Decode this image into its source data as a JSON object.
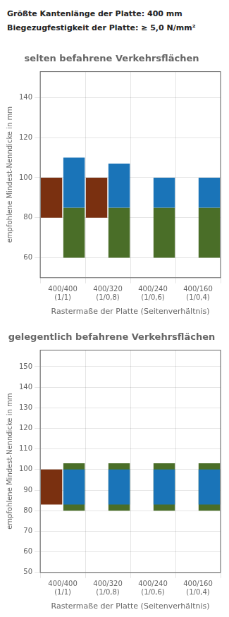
{
  "chart_data": [
    {
      "type": "bar",
      "title": "selten befahrene Verkehrsflächen",
      "annotations": [
        "Größte Kantenlänge der Platte: 400 mm",
        "Biegezugfestigkeit der Platte: ≥ 5,0 N/mm²"
      ],
      "x_label": "Rastermaße der Platte (Seitenverhältnis)",
      "y_label": "empfohlene Mindest-Nenndicke in mm",
      "categories": [
        "400/400\n(1/1)",
        "400/320\n(1/0,8)",
        "400/240\n(1/0,6)",
        "400/160\n(1/0,4)"
      ],
      "series": [
        {
          "color": "#4a6e28",
          "values": [
            [
              60,
              85
            ],
            [
              60,
              85
            ],
            [
              60,
              85
            ],
            [
              60,
              85
            ]
          ]
        },
        {
          "color": "#1a74b8",
          "values": [
            [
              85,
              110
            ],
            [
              85,
              107
            ],
            [
              85,
              100
            ],
            [
              85,
              100
            ]
          ]
        },
        {
          "color": "#7a3010",
          "values": [
            [
              80,
              100
            ],
            [
              80,
              100
            ],
            null,
            null
          ]
        }
      ],
      "ylim": [
        50,
        153
      ],
      "yticks": [
        60,
        80,
        100,
        120,
        140
      ],
      "grid": true
    },
    {
      "type": "bar",
      "title": "gelegentlich befahrene Verkehrsflächen",
      "x_label": "Rastermaße der Platte (Seitenverhältnis)",
      "y_label": "empfohlene Mindest-Nenndicke in mm",
      "categories": [
        "400/400\n(1/1)",
        "400/320\n(1/0,8)",
        "400/240\n(1/0,6)",
        "400/160\n(1/0,4)"
      ],
      "series": [
        {
          "color": "#4a6e28",
          "values": [
            [
              80,
              103
            ],
            [
              80,
              103
            ],
            [
              80,
              103
            ],
            [
              80,
              103
            ]
          ]
        },
        {
          "color": "#1a74b8",
          "values": [
            [
              83,
              100
            ],
            [
              83,
              100
            ],
            [
              83,
              100
            ],
            [
              83,
              100
            ]
          ]
        },
        {
          "color": "#7a3010",
          "values": [
            [
              83,
              100
            ],
            null,
            null,
            null
          ]
        }
      ],
      "ylim": [
        50,
        158
      ],
      "yticks": [
        50,
        60,
        70,
        80,
        90,
        100,
        110,
        120,
        130,
        140,
        150
      ],
      "grid": true
    }
  ]
}
